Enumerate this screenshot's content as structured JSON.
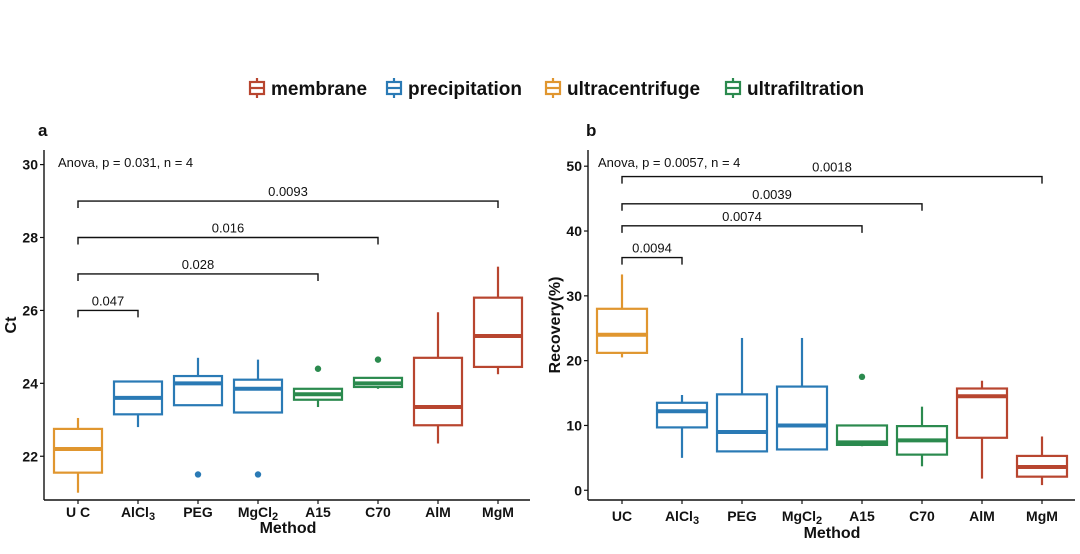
{
  "legend": {
    "items": [
      {
        "label": "membrane",
        "color": "#b8452f"
      },
      {
        "label": "precipitation",
        "color": "#2a7ab5"
      },
      {
        "label": "ultracentrifuge",
        "color": "#e0962f"
      },
      {
        "label": "ultrafiltration",
        "color": "#2b8a4e"
      }
    ]
  },
  "chart_data": [
    {
      "panel": "a",
      "type": "box",
      "annotation": "Anova, p = 0.031, n = 4",
      "xlabel": "Method",
      "ylabel": "Ct",
      "ylim": [
        20.8,
        30.4
      ],
      "yticks": [
        22,
        24,
        26,
        28,
        30
      ],
      "categories": [
        "U C",
        "AlCl3",
        "PEG",
        "MgCl2",
        "A15",
        "C70",
        "AlM",
        "MgM"
      ],
      "category_labels": [
        {
          "main": "U C",
          "sub": ""
        },
        {
          "main": "AlCl",
          "sub": "3"
        },
        {
          "main": "PEG",
          "sub": ""
        },
        {
          "main": "MgCl",
          "sub": "2"
        },
        {
          "main": "A15",
          "sub": ""
        },
        {
          "main": "C70",
          "sub": ""
        },
        {
          "main": "AlM",
          "sub": ""
        },
        {
          "main": "MgM",
          "sub": ""
        }
      ],
      "boxes": [
        {
          "group": "ultracentrifuge",
          "whisker_low": 21.0,
          "q1": 21.55,
          "median": 22.2,
          "q3": 22.75,
          "whisker_high": 23.05,
          "outliers": []
        },
        {
          "group": "precipitation",
          "whisker_low": 22.8,
          "q1": 23.15,
          "median": 23.6,
          "q3": 24.05,
          "whisker_high": 24.05,
          "outliers": []
        },
        {
          "group": "precipitation",
          "whisker_low": 23.4,
          "q1": 23.4,
          "median": 24.0,
          "q3": 24.2,
          "whisker_high": 24.7,
          "outliers": [
            21.5
          ]
        },
        {
          "group": "precipitation",
          "whisker_low": 23.2,
          "q1": 23.2,
          "median": 23.85,
          "q3": 24.1,
          "whisker_high": 24.65,
          "outliers": [
            21.5
          ]
        },
        {
          "group": "ultrafiltration",
          "whisker_low": 23.35,
          "q1": 23.55,
          "median": 23.7,
          "q3": 23.85,
          "whisker_high": 23.85,
          "outliers": [
            24.4
          ]
        },
        {
          "group": "ultrafiltration",
          "whisker_low": 23.85,
          "q1": 23.9,
          "median": 24.0,
          "q3": 24.15,
          "whisker_high": 24.15,
          "outliers": [
            24.65
          ]
        },
        {
          "group": "membrane",
          "whisker_low": 22.35,
          "q1": 22.85,
          "median": 23.35,
          "q3": 24.7,
          "whisker_high": 25.95,
          "outliers": []
        },
        {
          "group": "membrane",
          "whisker_low": 24.25,
          "q1": 24.45,
          "median": 25.3,
          "q3": 26.35,
          "whisker_high": 27.2,
          "outliers": []
        }
      ],
      "comparisons": [
        {
          "from": "U C",
          "to": "AlCl3",
          "y": 26.0,
          "label": "0.047"
        },
        {
          "from": "U C",
          "to": "A15",
          "y": 27.0,
          "label": "0.028"
        },
        {
          "from": "U C",
          "to": "C70",
          "y": 28.0,
          "label": "0.016"
        },
        {
          "from": "U C",
          "to": "MgM",
          "y": 29.0,
          "label": "0.0093"
        }
      ]
    },
    {
      "panel": "b",
      "type": "box",
      "annotation": "Anova, p = 0.0057, n = 4",
      "xlabel": "Method",
      "ylabel": "Recovery(%)",
      "ylim": [
        -1.5,
        52.5
      ],
      "yticks": [
        0,
        10,
        20,
        30,
        40,
        50
      ],
      "categories": [
        "UC",
        "AlCl3",
        "PEG",
        "MgCl2",
        "A15",
        "C70",
        "AlM",
        "MgM"
      ],
      "category_labels": [
        {
          "main": "UC",
          "sub": ""
        },
        {
          "main": "AlCl",
          "sub": "3"
        },
        {
          "main": "PEG",
          "sub": ""
        },
        {
          "main": "MgCl",
          "sub": "2"
        },
        {
          "main": "A15",
          "sub": ""
        },
        {
          "main": "C70",
          "sub": ""
        },
        {
          "main": "AlM",
          "sub": ""
        },
        {
          "main": "MgM",
          "sub": ""
        }
      ],
      "boxes": [
        {
          "group": "ultracentrifuge",
          "whisker_low": 20.5,
          "q1": 21.2,
          "median": 24.0,
          "q3": 28.0,
          "whisker_high": 33.3,
          "outliers": []
        },
        {
          "group": "precipitation",
          "whisker_low": 5.0,
          "q1": 9.7,
          "median": 12.2,
          "q3": 13.5,
          "whisker_high": 14.7,
          "outliers": []
        },
        {
          "group": "precipitation",
          "whisker_low": 6.0,
          "q1": 6.0,
          "median": 9.0,
          "q3": 14.8,
          "whisker_high": 23.5,
          "outliers": []
        },
        {
          "group": "precipitation",
          "whisker_low": 6.3,
          "q1": 6.3,
          "median": 10.0,
          "q3": 16.0,
          "whisker_high": 23.5,
          "outliers": []
        },
        {
          "group": "ultrafiltration",
          "whisker_low": 6.8,
          "q1": 7.0,
          "median": 7.4,
          "q3": 10.0,
          "whisker_high": 10.0,
          "outliers": [
            17.5
          ]
        },
        {
          "group": "ultrafiltration",
          "whisker_low": 3.7,
          "q1": 5.5,
          "median": 7.7,
          "q3": 9.9,
          "whisker_high": 12.9,
          "outliers": []
        },
        {
          "group": "membrane",
          "whisker_low": 1.8,
          "q1": 8.1,
          "median": 14.5,
          "q3": 15.7,
          "whisker_high": 16.9,
          "outliers": []
        },
        {
          "group": "membrane",
          "whisker_low": 0.8,
          "q1": 2.1,
          "median": 3.6,
          "q3": 5.3,
          "whisker_high": 8.3,
          "outliers": []
        }
      ],
      "comparisons": [
        {
          "from": "UC",
          "to": "AlCl3",
          "y": 35.9,
          "label": "0.0094"
        },
        {
          "from": "UC",
          "to": "A15",
          "y": 40.8,
          "label": "0.0074"
        },
        {
          "from": "UC",
          "to": "C70",
          "y": 44.2,
          "label": "0.0039"
        },
        {
          "from": "UC",
          "to": "MgM",
          "y": 48.4,
          "label": "0.0018"
        }
      ]
    }
  ]
}
